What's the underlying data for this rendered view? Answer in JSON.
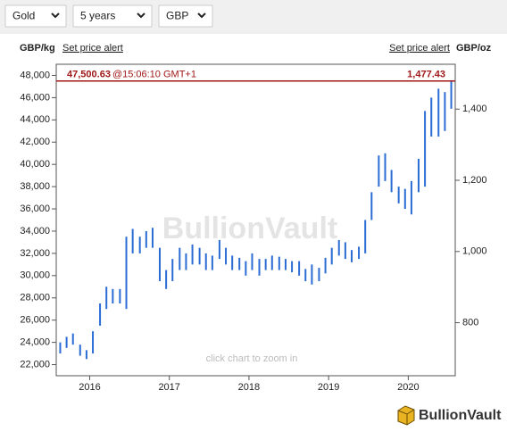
{
  "controls": {
    "metal": "Gold",
    "period": "5 years",
    "currency": "GBP"
  },
  "header": {
    "left_unit": "GBP/kg",
    "left_alert": "Set price alert",
    "right_alert": "Set price alert",
    "right_unit": "GBP/oz"
  },
  "watermark": "BullionVault",
  "hint": "click chart to zoom in",
  "logo": "BullionVault",
  "chart_data": {
    "type": "range-bar",
    "color": "#2b6cd4",
    "current_price": {
      "value": 47500.63,
      "label": "47,500.63"
    },
    "current_time": "@15:06:10 GMT+1",
    "current_price_oz": {
      "value": 1477.43,
      "label": "1,477.43"
    },
    "price_line_color": "#a01818",
    "x": [
      2015.63,
      2015.71,
      2015.79,
      2015.88,
      2015.96,
      2016.04,
      2016.13,
      2016.21,
      2016.29,
      2016.38,
      2016.46,
      2016.54,
      2016.63,
      2016.71,
      2016.79,
      2016.88,
      2016.96,
      2017.04,
      2017.13,
      2017.21,
      2017.29,
      2017.38,
      2017.46,
      2017.54,
      2017.63,
      2017.71,
      2017.79,
      2017.88,
      2017.96,
      2018.04,
      2018.13,
      2018.21,
      2018.29,
      2018.38,
      2018.46,
      2018.54,
      2018.63,
      2018.71,
      2018.79,
      2018.88,
      2018.96,
      2019.04,
      2019.13,
      2019.21,
      2019.29,
      2019.38,
      2019.46,
      2019.54,
      2019.63,
      2019.71,
      2019.79,
      2019.88,
      2019.96,
      2020.04,
      2020.13,
      2020.21,
      2020.29,
      2020.38,
      2020.46,
      2020.54
    ],
    "low": [
      23000,
      23500,
      23800,
      22800,
      22500,
      23000,
      25500,
      27000,
      27500,
      27500,
      27000,
      32000,
      32000,
      32500,
      32500,
      29500,
      28800,
      29500,
      30500,
      30500,
      31000,
      31000,
      30500,
      30500,
      31500,
      31000,
      30500,
      30500,
      30000,
      30500,
      30000,
      30500,
      30500,
      30500,
      30500,
      30300,
      30000,
      29500,
      29200,
      29500,
      30200,
      31000,
      31800,
      31500,
      31200,
      31500,
      32000,
      35000,
      38000,
      38500,
      37500,
      36500,
      36000,
      35500,
      37500,
      38000,
      42500,
      42500,
      43000,
      45000
    ],
    "high": [
      24000,
      24500,
      24800,
      23800,
      23300,
      25000,
      27500,
      29000,
      28800,
      28800,
      33500,
      34200,
      33500,
      34000,
      34300,
      32500,
      30500,
      31500,
      32500,
      32000,
      32800,
      32500,
      32000,
      31800,
      33200,
      32500,
      31800,
      31600,
      31300,
      32000,
      31500,
      31500,
      31800,
      31700,
      31500,
      31300,
      31300,
      30600,
      31000,
      30700,
      31600,
      32500,
      33200,
      33000,
      32300,
      32600,
      35000,
      37500,
      40800,
      41000,
      39500,
      38000,
      37800,
      38500,
      40500,
      44800,
      46000,
      46800,
      46500,
      47500
    ],
    "xlim": [
      2015.58,
      2020.59
    ],
    "xticks": [
      2016,
      2017,
      2018,
      2019,
      2020
    ],
    "ylim": [
      21000,
      49000
    ],
    "yticks": [
      {
        "value": 22000,
        "label": "22,000"
      },
      {
        "value": 24000,
        "label": "24,000"
      },
      {
        "value": 26000,
        "label": "26,000"
      },
      {
        "value": 28000,
        "label": "28,000"
      },
      {
        "value": 30000,
        "label": "30,000"
      },
      {
        "value": 32000,
        "label": "32,000"
      },
      {
        "value": 34000,
        "label": "34,000"
      },
      {
        "value": 36000,
        "label": "36,000"
      },
      {
        "value": 38000,
        "label": "38,000"
      },
      {
        "value": 40000,
        "label": "40,000"
      },
      {
        "value": 42000,
        "label": "42,000"
      },
      {
        "value": 44000,
        "label": "44,000"
      },
      {
        "value": 46000,
        "label": "46,000"
      },
      {
        "value": 48000,
        "label": "48,000"
      }
    ],
    "y2lim": [
      651,
      1526
    ],
    "y2ticks": [
      800,
      {
        "value": 1000,
        "label": "1,000"
      },
      {
        "value": 1200,
        "label": "1,200"
      },
      {
        "value": 1400,
        "label": "1,400"
      }
    ]
  }
}
